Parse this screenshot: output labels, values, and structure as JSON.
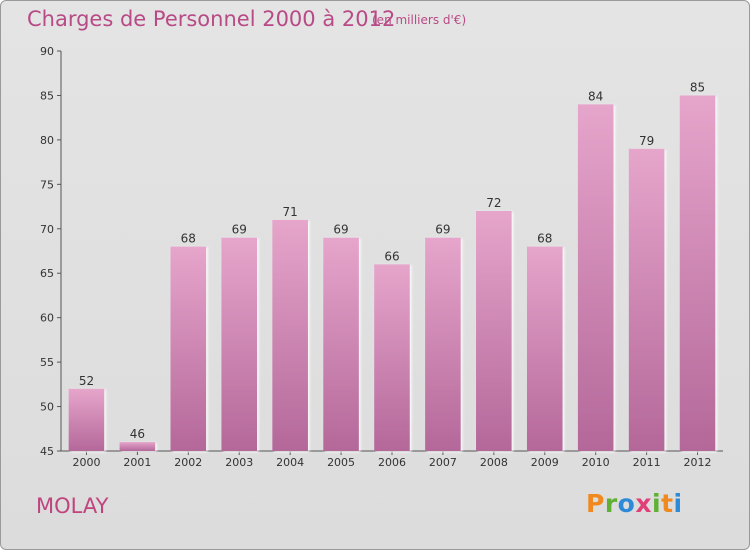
{
  "title": "Charges de Personnel 2000 à 2012",
  "subtitle": "(en milliers d'€)",
  "commune": "MOLAY",
  "brand": {
    "letters": [
      "P",
      "r",
      "o",
      "x",
      "i",
      "t",
      "i"
    ],
    "colors": [
      "#f08a1e",
      "#5fb133",
      "#2d8ad6",
      "#e0407a",
      "#5fb133",
      "#f08a1e",
      "#2d8ad6"
    ]
  },
  "colors": {
    "bar_top": "#e6a5cb",
    "bar_bottom": "#b4689a",
    "text_accent": "#b84a86"
  },
  "chart_data": {
    "type": "bar",
    "categories": [
      "2000",
      "2001",
      "2002",
      "2003",
      "2004",
      "2005",
      "2006",
      "2007",
      "2008",
      "2009",
      "2010",
      "2011",
      "2012"
    ],
    "values": [
      52,
      46,
      68,
      69,
      71,
      69,
      66,
      69,
      72,
      68,
      84,
      79,
      85
    ],
    "ylim": [
      45,
      90
    ],
    "yticks": [
      45,
      50,
      55,
      60,
      65,
      70,
      75,
      80,
      85,
      90
    ],
    "grid": false,
    "data_labels": true
  }
}
